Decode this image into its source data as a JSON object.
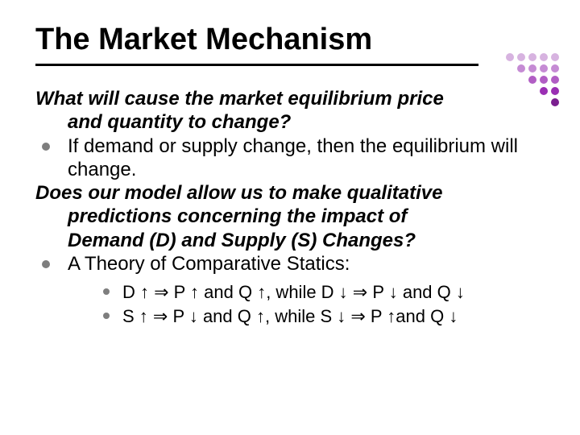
{
  "title": "The Market Mechanism",
  "deco": {
    "colors": [
      "#d7b3e0",
      "#d7b3e0",
      "#d7b3e0",
      "#d7b3e0",
      "#d7b3e0",
      "#c58bd4",
      "#c58bd4",
      "#c58bd4",
      "#c58bd4",
      "#b15ec4",
      "#b15ec4",
      "#b15ec4",
      "#9a2fb3",
      "#9a2fb3",
      "#7a1f8f"
    ],
    "rows": [
      5,
      4,
      3,
      2,
      1
    ]
  },
  "question1_line1": "What will cause the market equilibrium price",
  "question1_line2": "and quantity to change?",
  "bullet1": "If demand or supply change, then the equilibrium will change.",
  "question2_line1": "Does our model allow us to make qualitative",
  "question2_line2": "predictions concerning the impact of",
  "question2_line3": "Demand (D) and Supply (S) Changes?",
  "bullet2": "A Theory of Comparative Statics:",
  "sub1": "D ↑ ⇒ P ↑ and Q ↑, while D ↓ ⇒ P ↓ and Q ↓",
  "sub2": "S ↑ ⇒ P ↓ and Q ↑, while S ↓ ⇒ P ↑and Q ↓"
}
